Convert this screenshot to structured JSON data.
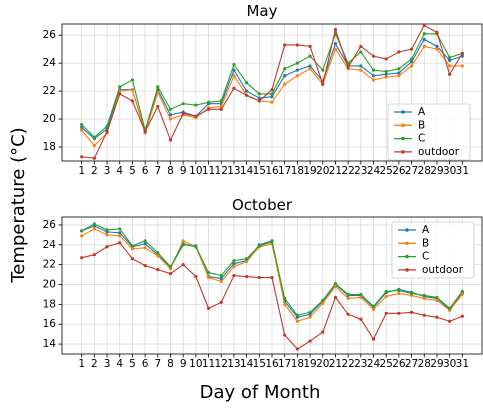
{
  "figure": {
    "ylabel": "Temperature (°C)",
    "xlabel": "Day of Month"
  },
  "chart_data": [
    {
      "type": "line",
      "title": "May",
      "x": [
        1,
        2,
        3,
        4,
        5,
        6,
        7,
        8,
        9,
        10,
        11,
        12,
        13,
        14,
        15,
        16,
        17,
        18,
        19,
        20,
        21,
        22,
        23,
        24,
        25,
        26,
        27,
        28,
        29,
        30,
        31
      ],
      "ylim": [
        17,
        26.8
      ],
      "yticks": [
        18,
        20,
        22,
        24,
        26
      ],
      "grid": true,
      "legend_position": "lower-right",
      "series": [
        {
          "name": "A",
          "color": "#1f77b4",
          "values": [
            19.4,
            18.6,
            19.3,
            22.1,
            22.1,
            19.1,
            22.1,
            20.3,
            20.5,
            20.2,
            21.1,
            21.1,
            23.5,
            22.0,
            21.5,
            21.6,
            23.1,
            23.5,
            23.8,
            22.7,
            25.4,
            23.8,
            23.8,
            23.1,
            23.2,
            23.3,
            24.1,
            25.7,
            25.2,
            24.2,
            24.5
          ]
        },
        {
          "name": "B",
          "color": "#ff7f0e",
          "values": [
            19.2,
            18.1,
            19.0,
            22.0,
            22.1,
            19.0,
            21.9,
            20.0,
            20.3,
            20.1,
            20.8,
            20.9,
            23.1,
            21.7,
            21.3,
            21.2,
            22.5,
            23.1,
            23.6,
            22.5,
            25.0,
            23.6,
            23.5,
            22.8,
            23.0,
            23.1,
            23.8,
            25.2,
            25.0,
            23.8,
            23.8
          ]
        },
        {
          "name": "C",
          "color": "#2ca02c",
          "values": [
            19.6,
            18.7,
            19.5,
            22.3,
            22.8,
            19.2,
            22.3,
            20.7,
            21.1,
            21.0,
            21.2,
            21.3,
            23.9,
            22.6,
            21.8,
            21.8,
            23.6,
            24.0,
            24.5,
            23.5,
            26.1,
            24.0,
            24.8,
            23.5,
            23.4,
            23.6,
            24.3,
            26.1,
            26.1,
            24.4,
            24.7
          ]
        },
        {
          "name": "outdoor",
          "color": "#c0392b",
          "values": [
            17.3,
            17.2,
            19.1,
            21.8,
            21.3,
            19.1,
            20.9,
            18.5,
            20.4,
            20.2,
            20.7,
            20.7,
            22.2,
            21.7,
            21.3,
            22.1,
            25.3,
            25.3,
            25.2,
            22.5,
            26.4,
            23.7,
            25.2,
            24.5,
            24.3,
            24.8,
            25.0,
            26.7,
            26.2,
            23.2,
            24.7
          ]
        }
      ]
    },
    {
      "type": "line",
      "title": "October",
      "x": [
        1,
        2,
        3,
        4,
        5,
        6,
        7,
        8,
        9,
        10,
        11,
        12,
        13,
        14,
        15,
        16,
        17,
        18,
        19,
        20,
        21,
        22,
        23,
        24,
        25,
        26,
        27,
        28,
        29,
        30,
        31
      ],
      "ylim": [
        13,
        26.8
      ],
      "yticks": [
        14,
        16,
        18,
        20,
        22,
        24,
        26
      ],
      "grid": true,
      "legend_position": "upper-right",
      "series": [
        {
          "name": "A",
          "color": "#1f77b4",
          "values": [
            25.4,
            25.9,
            25.3,
            25.2,
            23.8,
            24.1,
            23.0,
            21.7,
            24.0,
            23.9,
            20.8,
            20.6,
            22.1,
            22.4,
            24.0,
            24.4,
            18.3,
            16.7,
            17.0,
            18.3,
            20.0,
            18.9,
            18.9,
            17.7,
            19.2,
            19.5,
            19.2,
            18.8,
            18.6,
            17.5,
            19.2
          ]
        },
        {
          "name": "B",
          "color": "#ff7f0e",
          "values": [
            24.9,
            25.6,
            25.0,
            24.9,
            23.6,
            23.7,
            22.9,
            21.6,
            24.4,
            23.8,
            20.7,
            20.3,
            21.8,
            22.3,
            23.8,
            24.1,
            18.0,
            16.3,
            16.7,
            18.1,
            19.8,
            18.6,
            18.7,
            17.5,
            18.8,
            19.1,
            18.9,
            18.6,
            18.4,
            17.4,
            19.0
          ]
        },
        {
          "name": "C",
          "color": "#2ca02c",
          "values": [
            25.4,
            26.1,
            25.5,
            25.6,
            23.9,
            24.4,
            23.2,
            21.8,
            24.1,
            23.8,
            21.2,
            20.9,
            22.4,
            22.6,
            23.9,
            24.3,
            18.6,
            16.9,
            17.2,
            18.4,
            20.1,
            19.0,
            19.0,
            17.8,
            19.3,
            19.4,
            19.1,
            18.9,
            18.7,
            17.6,
            19.3
          ]
        },
        {
          "name": "outdoor",
          "color": "#c0392b",
          "values": [
            22.7,
            23.0,
            23.8,
            24.2,
            22.6,
            21.9,
            21.5,
            21.1,
            22.0,
            20.8,
            17.6,
            18.2,
            20.9,
            20.8,
            20.7,
            20.7,
            14.9,
            13.5,
            14.3,
            15.2,
            18.7,
            17.0,
            16.5,
            14.5,
            17.1,
            17.1,
            17.2,
            16.9,
            16.7,
            16.3,
            16.8
          ]
        }
      ]
    }
  ]
}
